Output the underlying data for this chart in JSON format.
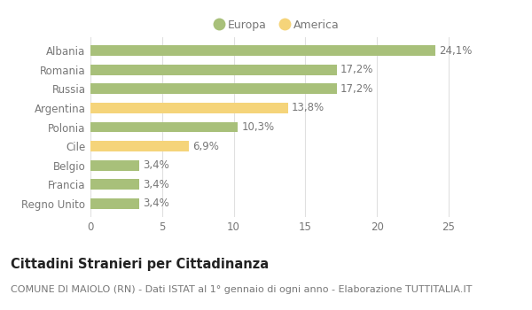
{
  "categories": [
    "Albania",
    "Romania",
    "Russia",
    "Argentina",
    "Polonia",
    "Cile",
    "Belgio",
    "Francia",
    "Regno Unito"
  ],
  "values": [
    24.1,
    17.2,
    17.2,
    13.8,
    10.3,
    6.9,
    3.4,
    3.4,
    3.4
  ],
  "labels": [
    "24,1%",
    "17,2%",
    "17,2%",
    "13,8%",
    "10,3%",
    "6,9%",
    "3,4%",
    "3,4%",
    "3,4%"
  ],
  "colors": [
    "#a8c07a",
    "#a8c07a",
    "#a8c07a",
    "#f5d47a",
    "#a8c07a",
    "#f5d47a",
    "#a8c07a",
    "#a8c07a",
    "#a8c07a"
  ],
  "europa_color": "#a8c07a",
  "america_color": "#f5d47a",
  "title": "Cittadini Stranieri per Cittadinanza",
  "subtitle": "COMUNE DI MAIOLO (RN) - Dati ISTAT al 1° gennaio di ogni anno - Elaborazione TUTTITALIA.IT",
  "xlim": [
    0,
    26
  ],
  "xticks": [
    0,
    5,
    10,
    15,
    20,
    25
  ],
  "bg_color": "#ffffff",
  "grid_color": "#e0e0e0",
  "bar_height": 0.55,
  "label_fontsize": 8.5,
  "title_fontsize": 10.5,
  "subtitle_fontsize": 8,
  "tick_fontsize": 8.5,
  "legend_fontsize": 9,
  "text_color": "#777777",
  "title_color": "#222222"
}
